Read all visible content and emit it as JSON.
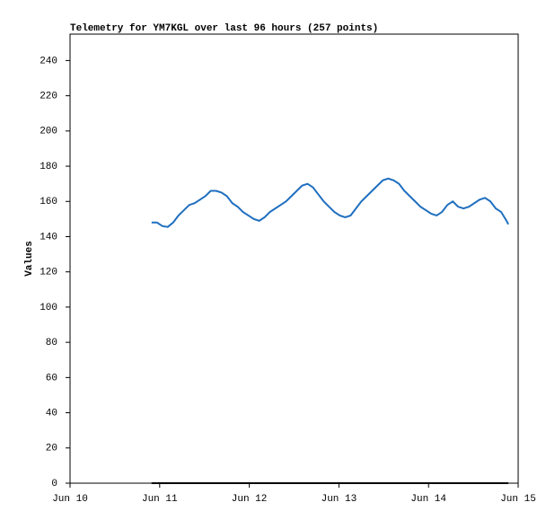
{
  "chart_data": {
    "type": "line",
    "title": "Telemetry for YM7KGL over last 96 hours (257 points)",
    "ylabel": "Values",
    "xlim": [
      10,
      15
    ],
    "xticks": [
      {
        "value": 10,
        "label": "Jun 10"
      },
      {
        "value": 11,
        "label": "Jun 11"
      },
      {
        "value": 12,
        "label": "Jun 12"
      },
      {
        "value": 13,
        "label": "Jun 13"
      },
      {
        "value": 14,
        "label": "Jun 14"
      },
      {
        "value": 15,
        "label": "Jun 15"
      }
    ],
    "ylim": [
      0,
      255
    ],
    "yticks": [
      0,
      20,
      40,
      60,
      80,
      100,
      120,
      140,
      160,
      180,
      200,
      220,
      240
    ],
    "grid": false,
    "series": [
      {
        "color": "#1f6fbf",
        "x": [
          10.91,
          10.97,
          11.03,
          11.09,
          11.15,
          11.21,
          11.27,
          11.33,
          11.39,
          11.45,
          11.51,
          11.57,
          11.63,
          11.69,
          11.75,
          11.81,
          11.87,
          11.93,
          11.99,
          12.05,
          12.11,
          12.17,
          12.23,
          12.29,
          12.35,
          12.41,
          12.47,
          12.53,
          12.59,
          12.65,
          12.71,
          12.77,
          12.83,
          12.89,
          12.95,
          13.01,
          13.07,
          13.13,
          13.19,
          13.25,
          13.31,
          13.37,
          13.43,
          13.49,
          13.55,
          13.61,
          13.67,
          13.73,
          13.79,
          13.85,
          13.91,
          13.97,
          14.03,
          14.09,
          14.15,
          14.21,
          14.27,
          14.33,
          14.39,
          14.45,
          14.51,
          14.57,
          14.63,
          14.69,
          14.75,
          14.81,
          14.87,
          14.89
        ],
        "values": [
          148,
          148,
          146,
          145.5,
          148,
          152,
          155,
          158,
          159,
          161,
          163,
          166,
          166,
          165,
          163,
          159,
          157,
          154,
          152,
          150,
          149,
          151,
          154,
          156,
          158,
          160,
          163,
          166,
          169,
          170,
          168,
          164,
          160,
          157,
          154,
          152,
          151,
          152,
          156,
          160,
          163,
          166,
          169,
          172,
          173,
          172,
          170,
          166,
          163,
          160,
          157,
          155,
          153,
          152,
          154,
          158,
          160,
          157,
          156,
          157,
          159,
          161,
          162,
          160,
          156,
          154,
          149,
          147
        ]
      },
      {
        "color": "#000000",
        "x": [
          10.91,
          14.89
        ],
        "values": [
          0,
          0
        ]
      }
    ]
  }
}
